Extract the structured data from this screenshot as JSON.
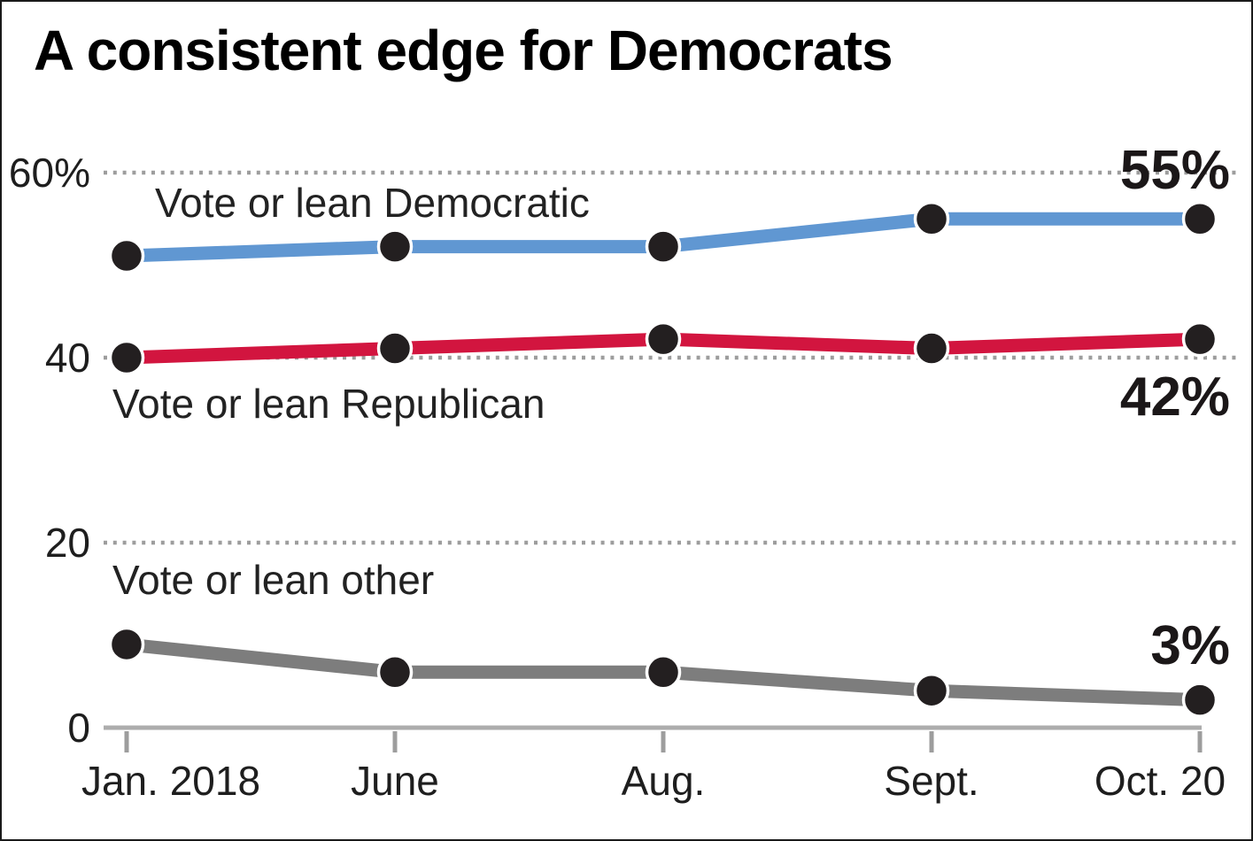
{
  "chart_data": {
    "type": "line",
    "title": "A consistent edge for Democrats",
    "categories": [
      "Jan. 2018",
      "June",
      "Aug.",
      "Sept.",
      "Oct. 20"
    ],
    "series": [
      {
        "name": "Vote or lean Democratic",
        "color": "#6097d2",
        "values": [
          51,
          52,
          52,
          55,
          55
        ],
        "end_label": "55%"
      },
      {
        "name": "Vote or lean Republican",
        "color": "#d2153f",
        "values": [
          40,
          41,
          42,
          41,
          42
        ],
        "end_label": "42%"
      },
      {
        "name": "Vote or lean other",
        "color": "#7d7d7d",
        "values": [
          9,
          6,
          6,
          4,
          3
        ],
        "end_label": "3%"
      }
    ],
    "y_axis": {
      "ticks": [
        {
          "value": 60,
          "label": "60%"
        },
        {
          "value": 40,
          "label": "40"
        },
        {
          "value": 20,
          "label": "20"
        },
        {
          "value": 0,
          "label": "0"
        }
      ],
      "range": [
        0,
        63
      ]
    },
    "legend_position": "inline-labels",
    "grid": "dotted-horizontal",
    "point_color": "#231f20",
    "gridline_color": "#9d9d9d",
    "axis_color": "#adadad"
  }
}
